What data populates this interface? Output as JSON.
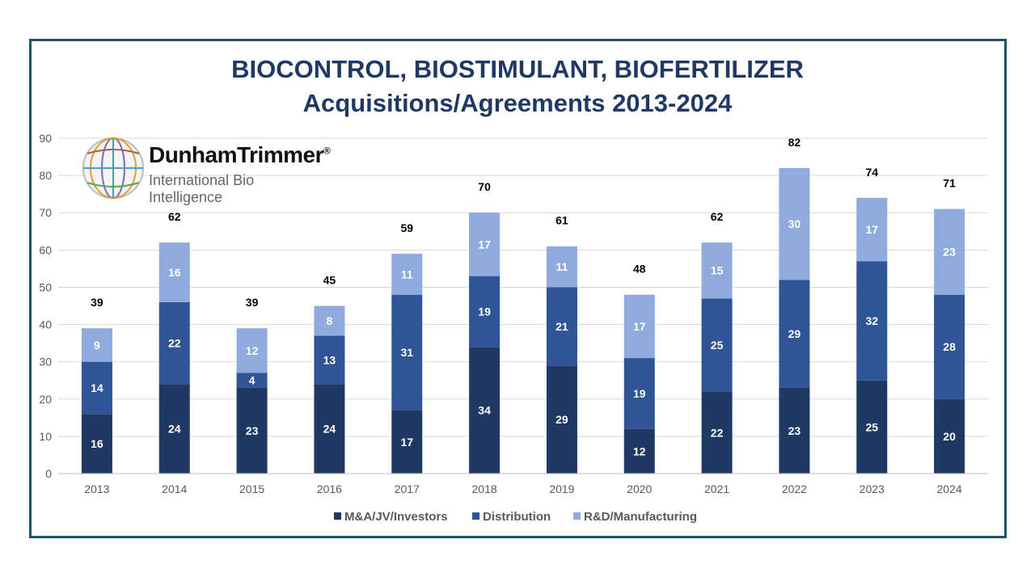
{
  "chart_data": {
    "type": "bar",
    "stacked": true,
    "title": "BIOCONTROL, BIOSTIMULANT, BIOFERTILIZER",
    "subtitle": "Acquisitions/Agreements 2013-2024",
    "categories": [
      "2013",
      "2014",
      "2015",
      "2016",
      "2017",
      "2018",
      "2019",
      "2020",
      "2021",
      "2022",
      "2023",
      "2024"
    ],
    "series": [
      {
        "name": "M&A/JV/Investors",
        "color": "#203864",
        "values": [
          16,
          24,
          23,
          24,
          17,
          34,
          29,
          12,
          22,
          23,
          25,
          20
        ]
      },
      {
        "name": "Distribution",
        "color": "#2f5597",
        "values": [
          14,
          22,
          4,
          13,
          31,
          19,
          21,
          19,
          25,
          29,
          32,
          28
        ]
      },
      {
        "name": "R&D/Manufacturing",
        "color": "#8faadc",
        "values": [
          9,
          16,
          12,
          8,
          11,
          17,
          11,
          17,
          15,
          30,
          17,
          23
        ]
      }
    ],
    "totals": [
      39,
      62,
      39,
      45,
      59,
      70,
      61,
      48,
      62,
      82,
      74,
      71
    ],
    "ylim": [
      0,
      90
    ],
    "yticks": [
      0,
      10,
      20,
      30,
      40,
      50,
      60,
      70,
      80,
      90
    ],
    "grid": true,
    "legend": "bottom",
    "xlabel": "",
    "ylabel": ""
  },
  "logo": {
    "name": "DunhamTrimmer",
    "mark": "®",
    "tagline": "International Bio Intelligence"
  }
}
